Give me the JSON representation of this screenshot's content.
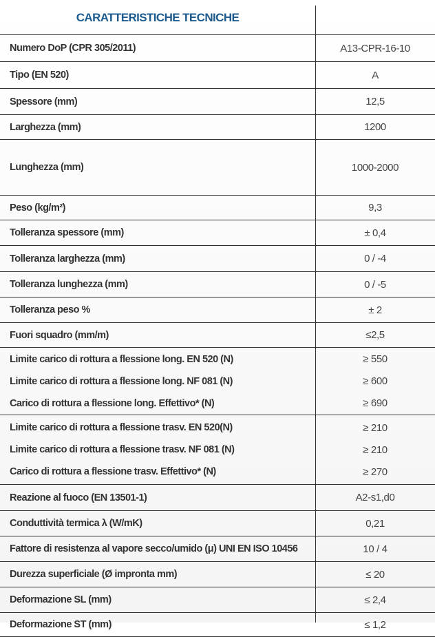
{
  "title": "CARATTERISTICHE TECNICHE",
  "rows": [
    {
      "h": 38,
      "lines": [
        {
          "label": "Numero DoP (CPR 305/2011)",
          "value": "A13-CPR-16-10"
        }
      ]
    },
    {
      "h": 38,
      "lines": [
        {
          "label": "Tipo (EN 520)",
          "value": "A"
        }
      ]
    },
    {
      "h": 37,
      "lines": [
        {
          "label": "Spessore (mm)",
          "value": "12,5"
        }
      ]
    },
    {
      "h": 35,
      "lines": [
        {
          "label": "Larghezza (mm)",
          "value": "1200"
        }
      ]
    },
    {
      "h": 80,
      "lines": [
        {
          "label": "Lunghezza (mm)",
          "value": "1000-2000"
        }
      ]
    },
    {
      "h": 35,
      "lines": [
        {
          "label": "Peso (kg/m²)",
          "value": "9,3"
        }
      ]
    },
    {
      "h": 36,
      "lines": [
        {
          "label": "Tolleranza spessore (mm)",
          "value": "± 0,4"
        }
      ]
    },
    {
      "h": 37,
      "lines": [
        {
          "label": "Tolleranza larghezza (mm)",
          "value": "0 / -4"
        }
      ]
    },
    {
      "h": 36,
      "lines": [
        {
          "label": "Tolleranza lunghezza (mm)",
          "value": "0 / -5"
        }
      ]
    },
    {
      "h": 36,
      "lines": [
        {
          "label": "Tolleranza peso %",
          "value": "± 2"
        }
      ]
    },
    {
      "h": 35,
      "lines": [
        {
          "label": "Fuori squadro (mm/m)",
          "value": "≤2,5"
        }
      ]
    },
    {
      "h": 97,
      "lines": [
        {
          "label": "Limite carico di rottura a flessione long. EN 520 (N)",
          "value": "≥ 550"
        },
        {
          "label": "Limite carico di rottura a flessione long. NF 081 (N)",
          "value": "≥ 600"
        },
        {
          "label": "Carico di rottura a flessione long. Effettivo* (N)",
          "value": "≥ 690"
        }
      ]
    },
    {
      "h": 100,
      "lines": [
        {
          "label": "Limite carico di rottura a flessione trasv. EN 520(N)",
          "value": "≥ 210"
        },
        {
          "label": "Limite carico di rottura a flessione trasv. NF 081 (N)",
          "value": "≥ 210"
        },
        {
          "label": "Carico di rottura a flessione trasv. Effettivo* (N)",
          "value": "≥ 270"
        }
      ]
    },
    {
      "h": 37,
      "lines": [
        {
          "label": "Reazione al fuoco (EN 13501-1)",
          "value": "A2-s1,d0"
        }
      ]
    },
    {
      "h": 36,
      "lines": [
        {
          "label": "Conduttività termica λ (W/mK)",
          "value": "0,21"
        }
      ]
    },
    {
      "h": 36,
      "lines": [
        {
          "label": "Fattore di resistenza al vapore secco/umido (μ) UNI EN ISO 10456",
          "value": "10 / 4"
        }
      ]
    },
    {
      "h": 36,
      "lines": [
        {
          "label": "Durezza superficiale (Ø impronta mm)",
          "value": "≤ 20"
        }
      ]
    },
    {
      "h": 36,
      "lines": [
        {
          "label": "Deformazione SL (mm)",
          "value": "≤ 2,4"
        }
      ]
    },
    {
      "h": 34,
      "lines": [
        {
          "label": "Deformazione ST (mm)",
          "value": "≤ 1,2"
        }
      ]
    }
  ]
}
